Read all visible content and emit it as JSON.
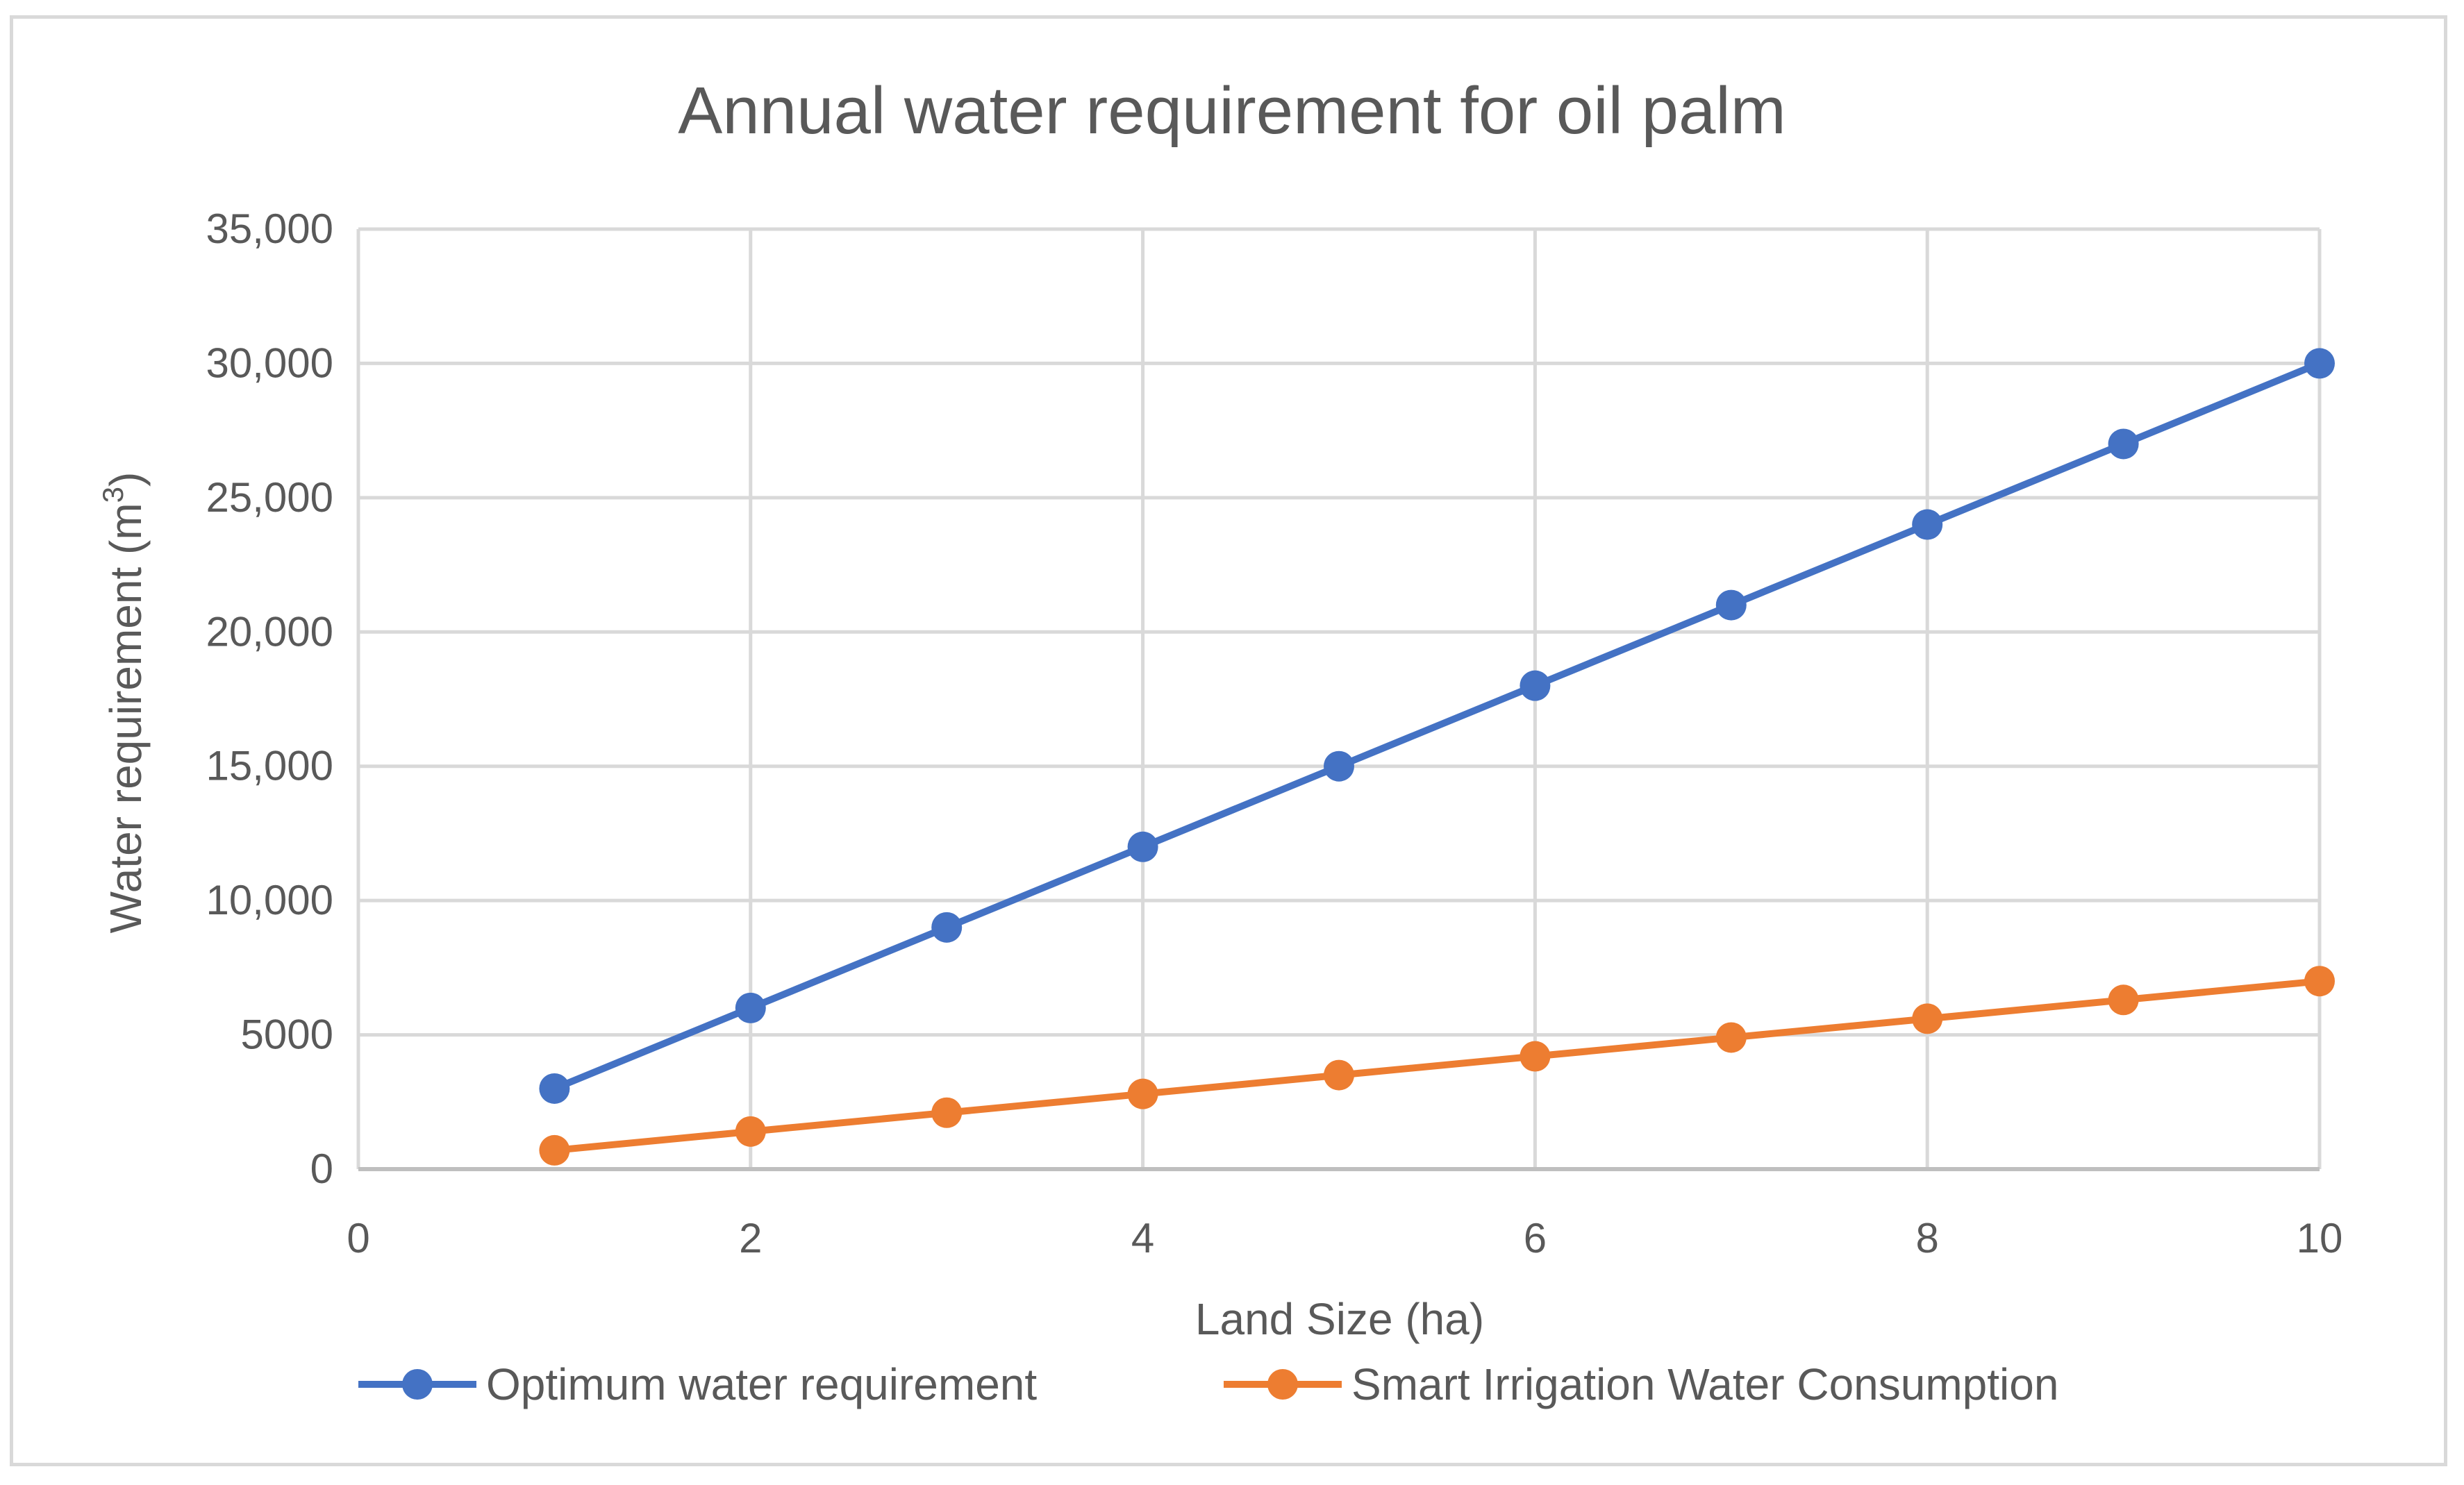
{
  "chart_data": {
    "type": "scatter",
    "title": "Annual water requirement for oil palm",
    "xlabel": "Land Size (ha)",
    "ylabel": "Water requirement (m",
    "ylabel_superscript": "3",
    "ylabel_close": ")",
    "xlim": [
      0,
      10
    ],
    "ylim": [
      0,
      35000
    ],
    "x_ticks": [
      0,
      2,
      4,
      6,
      8,
      10
    ],
    "x_tick_labels": [
      "0",
      "2",
      "4",
      "6",
      "8",
      "10"
    ],
    "y_ticks": [
      0,
      5000,
      10000,
      15000,
      20000,
      25000,
      30000,
      35000
    ],
    "y_tick_labels": [
      "0",
      "5000",
      "10,000",
      "15,000",
      "20,000",
      "25,000",
      "30,000",
      "35,000"
    ],
    "grid": true,
    "legend_position": "bottom",
    "series": [
      {
        "name": "Optimum water requirement",
        "color": "#4472c4",
        "x": [
          1,
          2,
          3,
          4,
          5,
          6,
          7,
          8,
          9,
          10
        ],
        "values": [
          3000,
          6000,
          9000,
          12000,
          15000,
          18000,
          21000,
          24000,
          27000,
          30000
        ]
      },
      {
        "name": "Smart Irrigation Water Consumption",
        "color": "#ed7d31",
        "x": [
          1,
          2,
          3,
          4,
          5,
          6,
          7,
          8,
          9,
          10
        ],
        "values": [
          700,
          1400,
          2100,
          2800,
          3500,
          4200,
          4900,
          5600,
          6300,
          7000
        ]
      }
    ]
  }
}
